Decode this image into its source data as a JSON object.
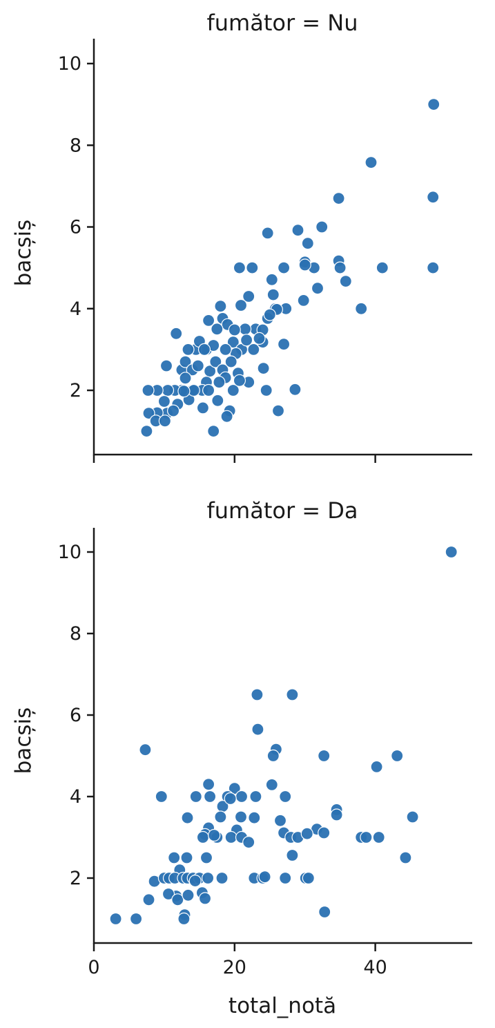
{
  "style": {
    "point_color": "#2a71b2",
    "point_edge_color": "#ffffff",
    "axis_color": "#1a1a1a",
    "background": "#ffffff"
  },
  "chart_data": [
    {
      "type": "scatter",
      "title": "fumător = Nu",
      "xlabel": "",
      "ylabel": "bacșiș",
      "xlim": [
        0,
        54
      ],
      "ylim": [
        0.4,
        10.6
      ],
      "xticks": [
        0,
        20,
        40
      ],
      "xtick_labels": [
        "",
        "",
        ""
      ],
      "yticks": [
        2,
        4,
        6,
        8,
        10
      ],
      "ytick_labels": [
        "2",
        "4",
        "6",
        "8",
        "10"
      ],
      "grid": false,
      "points": [
        {
          "x": 48.3,
          "y": 9.0
        },
        {
          "x": 39.4,
          "y": 7.58
        },
        {
          "x": 48.2,
          "y": 6.73
        },
        {
          "x": 34.8,
          "y": 6.7
        },
        {
          "x": 32.4,
          "y": 6.0
        },
        {
          "x": 29.0,
          "y": 5.92
        },
        {
          "x": 24.7,
          "y": 5.85
        },
        {
          "x": 30.4,
          "y": 5.6
        },
        {
          "x": 34.8,
          "y": 5.17
        },
        {
          "x": 30.0,
          "y": 5.14
        },
        {
          "x": 31.3,
          "y": 5.0
        },
        {
          "x": 35.0,
          "y": 5.0
        },
        {
          "x": 41.0,
          "y": 5.0
        },
        {
          "x": 48.2,
          "y": 5.0
        },
        {
          "x": 27.0,
          "y": 5.0
        },
        {
          "x": 20.7,
          "y": 5.0
        },
        {
          "x": 22.5,
          "y": 5.0
        },
        {
          "x": 30.0,
          "y": 5.07
        },
        {
          "x": 35.8,
          "y": 4.67
        },
        {
          "x": 25.3,
          "y": 4.71
        },
        {
          "x": 31.8,
          "y": 4.5
        },
        {
          "x": 29.8,
          "y": 4.2
        },
        {
          "x": 38.0,
          "y": 4.0
        },
        {
          "x": 27.3,
          "y": 4.0
        },
        {
          "x": 25.8,
          "y": 4.0
        },
        {
          "x": 22.0,
          "y": 4.3
        },
        {
          "x": 20.9,
          "y": 4.08
        },
        {
          "x": 18.0,
          "y": 4.06
        },
        {
          "x": 18.3,
          "y": 3.76
        },
        {
          "x": 16.3,
          "y": 3.71
        },
        {
          "x": 25.5,
          "y": 4.34
        },
        {
          "x": 19.0,
          "y": 3.61
        },
        {
          "x": 24.7,
          "y": 3.76
        },
        {
          "x": 23.0,
          "y": 3.5
        },
        {
          "x": 21.5,
          "y": 3.5
        },
        {
          "x": 20.0,
          "y": 3.48
        },
        {
          "x": 17.5,
          "y": 3.5
        },
        {
          "x": 24.0,
          "y": 3.48
        },
        {
          "x": 19.8,
          "y": 3.18
        },
        {
          "x": 16.0,
          "y": 3.0
        },
        {
          "x": 14.5,
          "y": 3.0
        },
        {
          "x": 15.0,
          "y": 3.2
        },
        {
          "x": 17.0,
          "y": 3.1
        },
        {
          "x": 21.0,
          "y": 3.0
        },
        {
          "x": 22.7,
          "y": 3.0
        },
        {
          "x": 24.0,
          "y": 3.18
        },
        {
          "x": 20.2,
          "y": 2.9
        },
        {
          "x": 18.7,
          "y": 3.0
        },
        {
          "x": 13.4,
          "y": 3.0
        },
        {
          "x": 12.5,
          "y": 2.5
        },
        {
          "x": 13.0,
          "y": 2.7
        },
        {
          "x": 14.0,
          "y": 2.5
        },
        {
          "x": 16.5,
          "y": 2.47
        },
        {
          "x": 17.3,
          "y": 2.7
        },
        {
          "x": 19.5,
          "y": 2.7
        },
        {
          "x": 20.5,
          "y": 2.42
        },
        {
          "x": 18.3,
          "y": 2.5
        },
        {
          "x": 22.0,
          "y": 2.2
        },
        {
          "x": 24.1,
          "y": 2.54
        },
        {
          "x": 27.0,
          "y": 3.13
        },
        {
          "x": 16.0,
          "y": 2.2
        },
        {
          "x": 18.7,
          "y": 2.31
        },
        {
          "x": 15.4,
          "y": 2.0
        },
        {
          "x": 14.0,
          "y": 2.0
        },
        {
          "x": 12.5,
          "y": 2.0
        },
        {
          "x": 11.5,
          "y": 2.0
        },
        {
          "x": 10.5,
          "y": 2.0
        },
        {
          "x": 9.0,
          "y": 2.0
        },
        {
          "x": 7.7,
          "y": 2.0
        },
        {
          "x": 16.3,
          "y": 2.0
        },
        {
          "x": 19.8,
          "y": 2.0
        },
        {
          "x": 20.7,
          "y": 2.24
        },
        {
          "x": 24.5,
          "y": 2.0
        },
        {
          "x": 28.6,
          "y": 2.02
        },
        {
          "x": 11.7,
          "y": 3.39
        },
        {
          "x": 10.3,
          "y": 2.6
        },
        {
          "x": 13.5,
          "y": 1.77
        },
        {
          "x": 14.2,
          "y": 2.0
        },
        {
          "x": 11.9,
          "y": 1.66
        },
        {
          "x": 12.8,
          "y": 1.98
        },
        {
          "x": 10.0,
          "y": 1.73
        },
        {
          "x": 15.5,
          "y": 1.57
        },
        {
          "x": 17.6,
          "y": 1.75
        },
        {
          "x": 19.3,
          "y": 1.5
        },
        {
          "x": 10.4,
          "y": 1.44
        },
        {
          "x": 9.0,
          "y": 1.45
        },
        {
          "x": 7.8,
          "y": 1.44
        },
        {
          "x": 8.8,
          "y": 1.25
        },
        {
          "x": 10.1,
          "y": 1.25
        },
        {
          "x": 11.3,
          "y": 1.5
        },
        {
          "x": 7.5,
          "y": 1.0
        },
        {
          "x": 17.0,
          "y": 1.0
        },
        {
          "x": 18.9,
          "y": 1.36
        },
        {
          "x": 26.2,
          "y": 1.5
        },
        {
          "x": 15.7,
          "y": 3.0
        },
        {
          "x": 21.7,
          "y": 3.23
        },
        {
          "x": 23.5,
          "y": 3.27
        },
        {
          "x": 26.0,
          "y": 3.98
        },
        {
          "x": 25.0,
          "y": 3.85
        },
        {
          "x": 14.8,
          "y": 2.6
        },
        {
          "x": 17.8,
          "y": 2.2
        },
        {
          "x": 13.0,
          "y": 2.3
        }
      ]
    },
    {
      "type": "scatter",
      "title": "fumător = Da",
      "xlabel": "total_notă",
      "ylabel": "bacșiș",
      "xlim": [
        0,
        54
      ],
      "ylim": [
        0.4,
        10.6
      ],
      "xticks": [
        0,
        20,
        40
      ],
      "xtick_labels": [
        "0",
        "20",
        "40"
      ],
      "yticks": [
        2,
        4,
        6,
        8,
        10
      ],
      "ytick_labels": [
        "2",
        "4",
        "6",
        "8",
        "10"
      ],
      "grid": false,
      "points": [
        {
          "x": 50.8,
          "y": 10.0
        },
        {
          "x": 23.2,
          "y": 6.5
        },
        {
          "x": 28.2,
          "y": 6.5
        },
        {
          "x": 23.3,
          "y": 5.65
        },
        {
          "x": 7.3,
          "y": 5.15
        },
        {
          "x": 25.9,
          "y": 5.16
        },
        {
          "x": 25.5,
          "y": 5.0
        },
        {
          "x": 32.7,
          "y": 5.0
        },
        {
          "x": 43.1,
          "y": 5.0
        },
        {
          "x": 40.2,
          "y": 4.73
        },
        {
          "x": 16.3,
          "y": 4.3
        },
        {
          "x": 20.0,
          "y": 4.2
        },
        {
          "x": 25.3,
          "y": 4.29
        },
        {
          "x": 9.6,
          "y": 4.0
        },
        {
          "x": 14.5,
          "y": 4.0
        },
        {
          "x": 16.5,
          "y": 4.0
        },
        {
          "x": 19.0,
          "y": 4.0
        },
        {
          "x": 21.0,
          "y": 4.0
        },
        {
          "x": 23.0,
          "y": 4.0
        },
        {
          "x": 27.2,
          "y": 4.0
        },
        {
          "x": 18.3,
          "y": 3.76
        },
        {
          "x": 34.5,
          "y": 3.68
        },
        {
          "x": 34.5,
          "y": 3.55
        },
        {
          "x": 45.3,
          "y": 3.5
        },
        {
          "x": 13.3,
          "y": 3.48
        },
        {
          "x": 18.0,
          "y": 3.5
        },
        {
          "x": 20.9,
          "y": 3.5
        },
        {
          "x": 22.8,
          "y": 3.48
        },
        {
          "x": 26.5,
          "y": 3.41
        },
        {
          "x": 16.3,
          "y": 3.23
        },
        {
          "x": 20.3,
          "y": 3.18
        },
        {
          "x": 31.7,
          "y": 3.2
        },
        {
          "x": 32.7,
          "y": 3.11
        },
        {
          "x": 27.0,
          "y": 3.11
        },
        {
          "x": 15.8,
          "y": 3.07
        },
        {
          "x": 15.5,
          "y": 3.0
        },
        {
          "x": 17.5,
          "y": 3.0
        },
        {
          "x": 19.5,
          "y": 3.0
        },
        {
          "x": 21.0,
          "y": 3.0
        },
        {
          "x": 28.0,
          "y": 3.0
        },
        {
          "x": 29.0,
          "y": 3.0
        },
        {
          "x": 30.3,
          "y": 3.09
        },
        {
          "x": 38.0,
          "y": 3.0
        },
        {
          "x": 38.7,
          "y": 3.0
        },
        {
          "x": 40.5,
          "y": 3.0
        },
        {
          "x": 22.0,
          "y": 2.88
        },
        {
          "x": 28.2,
          "y": 2.56
        },
        {
          "x": 44.3,
          "y": 2.5
        },
        {
          "x": 11.4,
          "y": 2.5
        },
        {
          "x": 13.2,
          "y": 2.5
        },
        {
          "x": 16.0,
          "y": 2.5
        },
        {
          "x": 12.2,
          "y": 2.2
        },
        {
          "x": 8.6,
          "y": 1.92
        },
        {
          "x": 10.0,
          "y": 2.0
        },
        {
          "x": 10.7,
          "y": 2.0
        },
        {
          "x": 11.5,
          "y": 2.0
        },
        {
          "x": 12.7,
          "y": 2.0
        },
        {
          "x": 13.3,
          "y": 2.0
        },
        {
          "x": 14.1,
          "y": 2.0
        },
        {
          "x": 15.0,
          "y": 2.0
        },
        {
          "x": 16.2,
          "y": 2.0
        },
        {
          "x": 18.2,
          "y": 2.0
        },
        {
          "x": 22.8,
          "y": 2.0
        },
        {
          "x": 24.0,
          "y": 2.0
        },
        {
          "x": 24.3,
          "y": 2.03
        },
        {
          "x": 27.2,
          "y": 2.0
        },
        {
          "x": 30.1,
          "y": 2.0
        },
        {
          "x": 30.5,
          "y": 2.0
        },
        {
          "x": 14.4,
          "y": 1.93
        },
        {
          "x": 11.7,
          "y": 1.56
        },
        {
          "x": 10.6,
          "y": 1.61
        },
        {
          "x": 11.9,
          "y": 1.47
        },
        {
          "x": 13.4,
          "y": 1.58
        },
        {
          "x": 15.4,
          "y": 1.64
        },
        {
          "x": 15.8,
          "y": 1.5
        },
        {
          "x": 7.8,
          "y": 1.47
        },
        {
          "x": 12.9,
          "y": 1.1
        },
        {
          "x": 12.8,
          "y": 1.0
        },
        {
          "x": 3.1,
          "y": 1.0
        },
        {
          "x": 6.0,
          "y": 1.0
        },
        {
          "x": 32.8,
          "y": 1.17
        },
        {
          "x": 17.1,
          "y": 3.05
        },
        {
          "x": 19.4,
          "y": 3.95
        }
      ]
    }
  ]
}
